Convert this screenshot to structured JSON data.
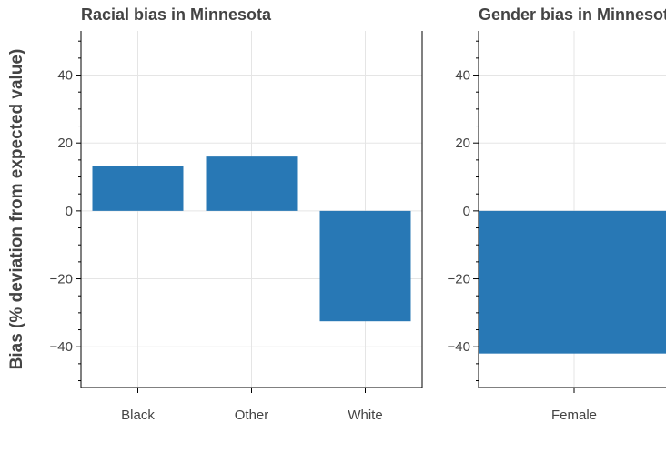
{
  "ylabel": "Bias (% deviation from expected value)",
  "chart_data": [
    {
      "type": "bar",
      "title": "Racial bias in Minnesota",
      "categories": [
        "Black",
        "Other",
        "White"
      ],
      "values": [
        13.2,
        16.0,
        -32.5
      ],
      "ylim": [
        -52,
        53
      ],
      "yticks": [
        -40,
        -20,
        0,
        20,
        40
      ],
      "yticks_text": [
        "−40",
        "−20",
        "0",
        "20",
        "40"
      ],
      "grid": true,
      "bar_color": "#2878b5"
    },
    {
      "type": "bar",
      "title": "Gender bias in Minnesota",
      "categories": [
        "Female"
      ],
      "values": [
        -42.0
      ],
      "ylim": [
        -52,
        53
      ],
      "yticks": [
        -40,
        -20,
        0,
        20,
        40
      ],
      "yticks_text": [
        "−40",
        "−20",
        "0",
        "20",
        "40"
      ],
      "grid": true,
      "bar_color": "#2878b5"
    }
  ]
}
